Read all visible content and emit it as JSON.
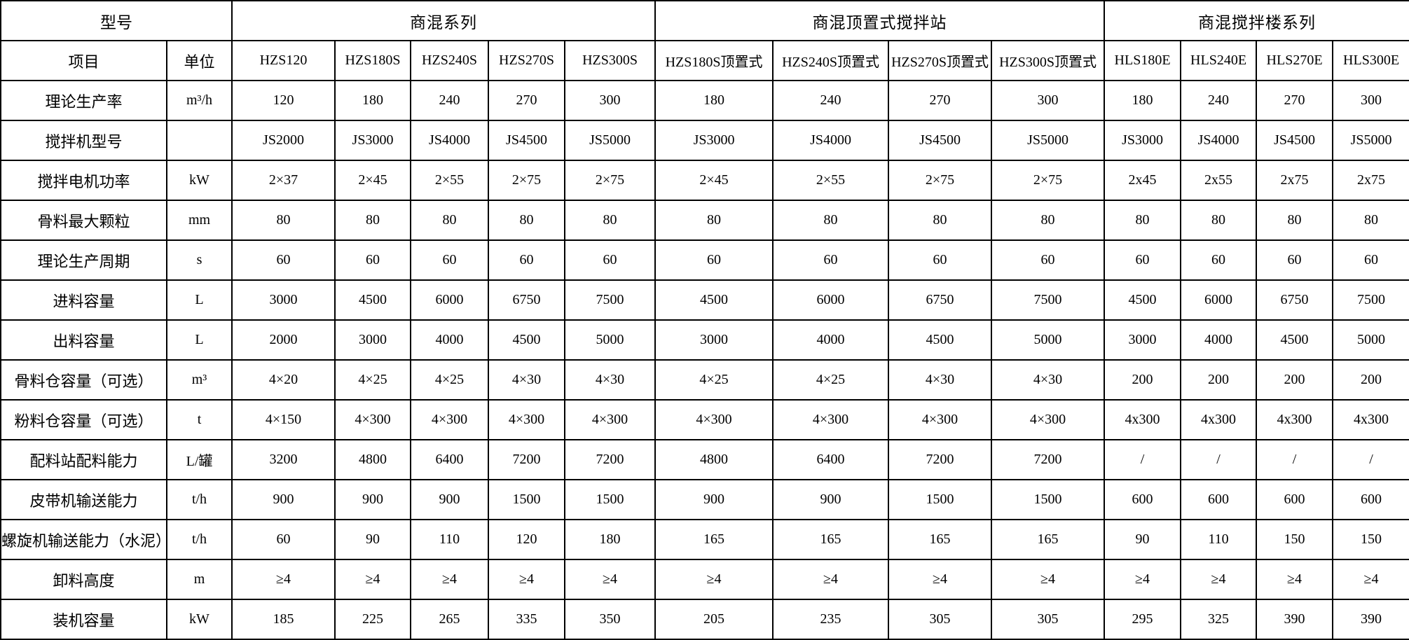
{
  "table": {
    "corner_label": "型号",
    "item_label": "项目",
    "unit_label": "单位",
    "groups": [
      {
        "label": "商混系列",
        "span": 5
      },
      {
        "label": "商混顶置式搅拌站",
        "span": 4
      },
      {
        "label": "商混搅拌楼系列",
        "span": 4
      }
    ],
    "models": [
      "HZS120",
      "HZS180S",
      "HZS240S",
      "HZS270S",
      "HZS300S",
      "HZS180S顶置式",
      "HZS240S顶置式",
      "HZS270S顶置式",
      "HZS300S顶置式",
      "HLS180E",
      "HLS240E",
      "HLS270E",
      "HLS300E"
    ],
    "rows": [
      {
        "item": "理论生产率",
        "unit": "m³/h",
        "values": [
          "120",
          "180",
          "240",
          "270",
          "300",
          "180",
          "240",
          "270",
          "300",
          "180",
          "240",
          "270",
          "300"
        ]
      },
      {
        "item": "搅拌机型号",
        "unit": "",
        "values": [
          "JS2000",
          "JS3000",
          "JS4000",
          "JS4500",
          "JS5000",
          "JS3000",
          "JS4000",
          "JS4500",
          "JS5000",
          "JS3000",
          "JS4000",
          "JS4500",
          "JS5000"
        ]
      },
      {
        "item": "搅拌电机功率",
        "unit": "kW",
        "values": [
          "2×37",
          "2×45",
          "2×55",
          "2×75",
          "2×75",
          "2×45",
          "2×55",
          "2×75",
          "2×75",
          "2x45",
          "2x55",
          "2x75",
          "2x75"
        ]
      },
      {
        "item": "骨料最大颗粒",
        "unit": "mm",
        "values": [
          "80",
          "80",
          "80",
          "80",
          "80",
          "80",
          "80",
          "80",
          "80",
          "80",
          "80",
          "80",
          "80"
        ]
      },
      {
        "item": "理论生产周期",
        "unit": "s",
        "values": [
          "60",
          "60",
          "60",
          "60",
          "60",
          "60",
          "60",
          "60",
          "60",
          "60",
          "60",
          "60",
          "60"
        ]
      },
      {
        "item": "进料容量",
        "unit": "L",
        "values": [
          "3000",
          "4500",
          "6000",
          "6750",
          "7500",
          "4500",
          "6000",
          "6750",
          "7500",
          "4500",
          "6000",
          "6750",
          "7500"
        ]
      },
      {
        "item": "出料容量",
        "unit": "L",
        "values": [
          "2000",
          "3000",
          "4000",
          "4500",
          "5000",
          "3000",
          "4000",
          "4500",
          "5000",
          "3000",
          "4000",
          "4500",
          "5000"
        ]
      },
      {
        "item": "骨料仓容量（可选）",
        "unit": "m³",
        "values": [
          "4×20",
          "4×25",
          "4×25",
          "4×30",
          "4×30",
          "4×25",
          "4×25",
          "4×30",
          "4×30",
          "200",
          "200",
          "200",
          "200"
        ]
      },
      {
        "item": "粉料仓容量（可选）",
        "unit": "t",
        "values": [
          "4×150",
          "4×300",
          "4×300",
          "4×300",
          "4×300",
          "4×300",
          "4×300",
          "4×300",
          "4×300",
          "4x300",
          "4x300",
          "4x300",
          "4x300"
        ]
      },
      {
        "item": "配料站配料能力",
        "unit": "L/罐",
        "values": [
          "3200",
          "4800",
          "6400",
          "7200",
          "7200",
          "4800",
          "6400",
          "7200",
          "7200",
          "/",
          "/",
          "/",
          "/"
        ]
      },
      {
        "item": "皮带机输送能力",
        "unit": "t/h",
        "values": [
          "900",
          "900",
          "900",
          "1500",
          "1500",
          "900",
          "900",
          "1500",
          "1500",
          "600",
          "600",
          "600",
          "600"
        ]
      },
      {
        "item": "螺旋机输送能力（水泥）",
        "unit": "t/h",
        "values": [
          "60",
          "90",
          "110",
          "120",
          "180",
          "165",
          "165",
          "165",
          "165",
          "90",
          "110",
          "150",
          "150"
        ]
      },
      {
        "item": "卸料高度",
        "unit": "m",
        "values": [
          "≥4",
          "≥4",
          "≥4",
          "≥4",
          "≥4",
          "≥4",
          "≥4",
          "≥4",
          "≥4",
          "≥4",
          "≥4",
          "≥4",
          "≥4"
        ]
      },
      {
        "item": "装机容量",
        "unit": "kW",
        "values": [
          "185",
          "225",
          "265",
          "335",
          "350",
          "205",
          "235",
          "305",
          "305",
          "295",
          "325",
          "390",
          "390"
        ]
      }
    ]
  }
}
